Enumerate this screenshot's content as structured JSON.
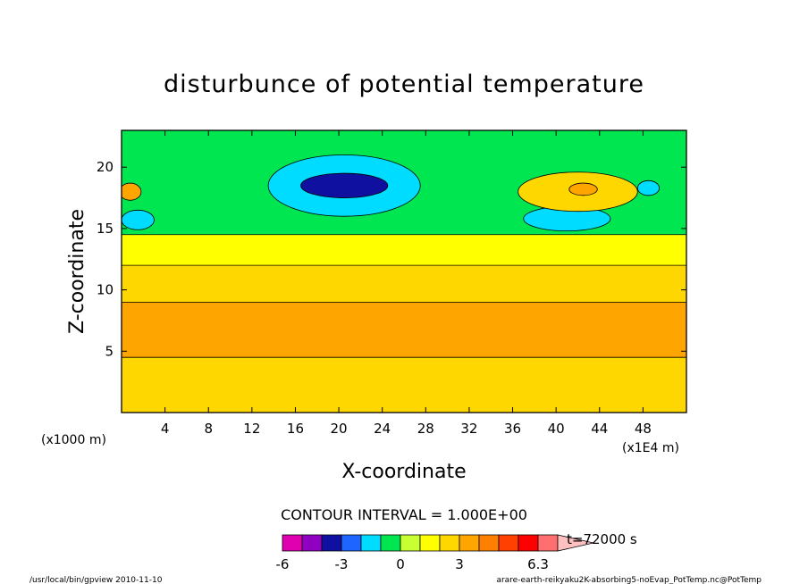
{
  "chart_data": {
    "type": "heatmap",
    "title": "disturbunce of potential temperature",
    "xlabel": "X-coordinate",
    "ylabel": "Z-coordinate",
    "x_unit_left": "(x1000 m)",
    "x_unit_right": "(x1E4 m)",
    "xlim": [
      0,
      52
    ],
    "ylim": [
      0,
      23
    ],
    "x_ticks": [
      4,
      8,
      12,
      16,
      20,
      24,
      28,
      32,
      36,
      40,
      44,
      48
    ],
    "y_ticks": [
      5,
      10,
      15,
      20
    ],
    "contour_interval": "CONTOUR INTERVAL = 1.000E+00",
    "time_label": "t=72000 s",
    "colorbar": {
      "tick_labels": [
        "-6",
        "-3",
        "0",
        "3",
        "6.3"
      ],
      "colors": [
        "#e000b0",
        "#9000c0",
        "#1010a0",
        "#1e64ff",
        "#00dcff",
        "#00e650",
        "#c8ff32",
        "#ffff00",
        "#ffd700",
        "#ffa500",
        "#ff8000",
        "#ff4000",
        "#ff0000",
        "#ff6f6f",
        "#ffc0c0"
      ]
    },
    "bands": [
      {
        "level": 2,
        "color": "#ffd700",
        "z_bottom": 0.0,
        "z_top": 4.5
      },
      {
        "level": 3,
        "color": "#ffa500",
        "z_bottom": 4.5,
        "z_top": 9.0
      },
      {
        "level": 2,
        "color": "#ffd700",
        "z_bottom": 9.0,
        "z_top": 12.0
      },
      {
        "level": 1,
        "color": "#ffff00",
        "z_bottom": 12.0,
        "z_top": 14.5
      },
      {
        "level": 0,
        "color": "#00e650",
        "z_bottom": 14.5,
        "z_top": 23.0
      }
    ],
    "blobs": [
      {
        "x": 20.5,
        "z": 18.5,
        "rx": 7.0,
        "rz": 2.5,
        "color": "#00dcff"
      },
      {
        "x": 20.5,
        "z": 18.5,
        "rx": 4.0,
        "rz": 1.0,
        "color": "#1010a0"
      },
      {
        "x": 41.0,
        "z": 15.8,
        "rx": 4.0,
        "rz": 1.0,
        "color": "#00dcff"
      },
      {
        "x": 48.5,
        "z": 18.3,
        "rx": 1.0,
        "rz": 0.6,
        "color": "#00dcff"
      },
      {
        "x": 1.5,
        "z": 15.7,
        "rx": 1.5,
        "rz": 0.8,
        "color": "#00dcff"
      },
      {
        "x": 42.0,
        "z": 18.0,
        "rx": 5.5,
        "rz": 1.6,
        "color": "#ffd700"
      },
      {
        "x": 42.5,
        "z": 18.2,
        "rx": 1.3,
        "rz": 0.5,
        "color": "#ffa500"
      },
      {
        "x": 0.8,
        "z": 18.0,
        "rx": 1.0,
        "rz": 0.7,
        "color": "#ffa500"
      }
    ]
  },
  "footer": {
    "left": "/usr/local/bin/gpview  2010-11-10",
    "right": "arare-earth-reikyaku2K-absorbing5-noEvap_PotTemp.nc@PotTemp"
  }
}
